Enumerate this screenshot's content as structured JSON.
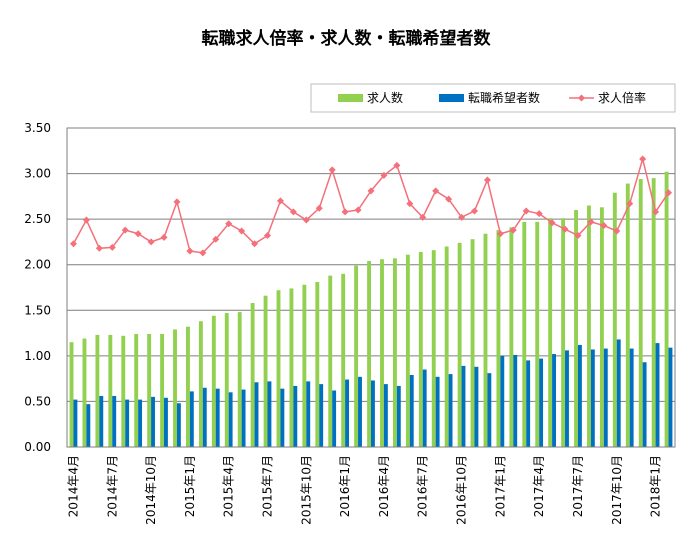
{
  "chart_data": {
    "type": "bar",
    "title": "転職求人倍率・求人数・転職希望者数",
    "xlabel": "",
    "ylabel": "",
    "ylim": [
      0,
      3.5
    ],
    "yticks": [
      "0.00",
      "0.50",
      "1.00",
      "1.50",
      "2.00",
      "2.50",
      "3.00",
      "3.50"
    ],
    "grid": true,
    "legend_position": "top-right",
    "categories": [
      "2014年4月",
      "2014年5月",
      "2014年6月",
      "2014年7月",
      "2014年8月",
      "2014年9月",
      "2014年10月",
      "2014年11月",
      "2014年12月",
      "2015年1月",
      "2015年2月",
      "2015年3月",
      "2015年4月",
      "2015年5月",
      "2015年6月",
      "2015年7月",
      "2015年8月",
      "2015年9月",
      "2015年10月",
      "2015年11月",
      "2015年12月",
      "2016年1月",
      "2016年2月",
      "2016年3月",
      "2016年4月",
      "2016年5月",
      "2016年6月",
      "2016年7月",
      "2016年8月",
      "2016年9月",
      "2016年10月",
      "2016年11月",
      "2016年12月",
      "2017年1月",
      "2017年2月",
      "2017年3月",
      "2017年4月",
      "2017年5月",
      "2017年6月",
      "2017年7月",
      "2017年8月",
      "2017年9月",
      "2017年10月",
      "2017年11月",
      "2017年12月",
      "2018年1月",
      "2018年2月"
    ],
    "shown_tick_labels": [
      "2014年4月",
      "2014年7月",
      "2014年10月",
      "2015年1月",
      "2015年4月",
      "2015年7月",
      "2015年10月",
      "2016年1月",
      "2016年4月",
      "2016年7月",
      "2016年10月",
      "2017年1月",
      "2017年4月",
      "2017年7月",
      "2017年10月",
      "2018年1月"
    ],
    "series": [
      {
        "name": "求人数",
        "kind": "bar",
        "color": "#92d050",
        "values": [
          1.15,
          1.19,
          1.23,
          1.23,
          1.22,
          1.24,
          1.24,
          1.24,
          1.29,
          1.32,
          1.38,
          1.44,
          1.47,
          1.48,
          1.58,
          1.66,
          1.72,
          1.74,
          1.78,
          1.81,
          1.88,
          1.9,
          1.99,
          2.04,
          2.06,
          2.07,
          2.11,
          2.14,
          2.16,
          2.2,
          2.24,
          2.28,
          2.34,
          2.38,
          2.41,
          2.47,
          2.47,
          2.51,
          2.51,
          2.6,
          2.65,
          2.63,
          2.79,
          2.89,
          2.94,
          2.95,
          3.02
        ]
      },
      {
        "name": "転職希望者数",
        "kind": "bar",
        "color": "#0070c0",
        "values": [
          0.52,
          0.47,
          0.56,
          0.56,
          0.52,
          0.52,
          0.55,
          0.54,
          0.48,
          0.61,
          0.65,
          0.64,
          0.6,
          0.63,
          0.71,
          0.72,
          0.64,
          0.67,
          0.72,
          0.69,
          0.62,
          0.74,
          0.77,
          0.73,
          0.69,
          0.67,
          0.79,
          0.85,
          0.77,
          0.8,
          0.89,
          0.88,
          0.81,
          1.0,
          1.01,
          0.95,
          0.97,
          1.02,
          1.06,
          1.12,
          1.07,
          1.08,
          1.18,
          1.08,
          0.93,
          1.14,
          1.09
        ]
      },
      {
        "name": "求人倍率",
        "kind": "line",
        "color": "#f4707a",
        "values": [
          2.23,
          2.49,
          2.18,
          2.19,
          2.38,
          2.34,
          2.25,
          2.3,
          2.69,
          2.15,
          2.13,
          2.28,
          2.45,
          2.37,
          2.23,
          2.32,
          2.7,
          2.58,
          2.49,
          2.62,
          3.04,
          2.58,
          2.6,
          2.81,
          2.98,
          3.09,
          2.67,
          2.52,
          2.81,
          2.72,
          2.52,
          2.59,
          2.93,
          2.34,
          2.38,
          2.59,
          2.56,
          2.46,
          2.39,
          2.32,
          2.47,
          2.43,
          2.37,
          2.67,
          3.16,
          2.58,
          2.79
        ]
      }
    ]
  }
}
